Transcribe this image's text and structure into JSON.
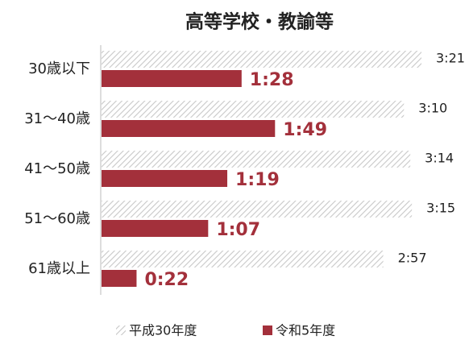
{
  "chart_data": {
    "type": "hbar",
    "title": "高等学校・教諭等",
    "categories": [
      "30歳以下",
      "31～40歳",
      "41～50歳",
      "51～60歳",
      "61歳以上"
    ],
    "series": [
      {
        "name": "平成30年度",
        "color": "#c8c8c8",
        "pattern": "hatch",
        "values": [
          201,
          190,
          194,
          195,
          177
        ],
        "value_labels": [
          "3:21",
          "3:10",
          "3:14",
          "3:15",
          "2:57"
        ]
      },
      {
        "name": "令和5年度",
        "color": "#a3303b",
        "values": [
          88,
          109,
          79,
          67,
          22
        ],
        "value_labels": [
          "1:28",
          "1:49",
          "1:19",
          "1:07",
          "0:22"
        ]
      }
    ],
    "legend": "bottom"
  }
}
